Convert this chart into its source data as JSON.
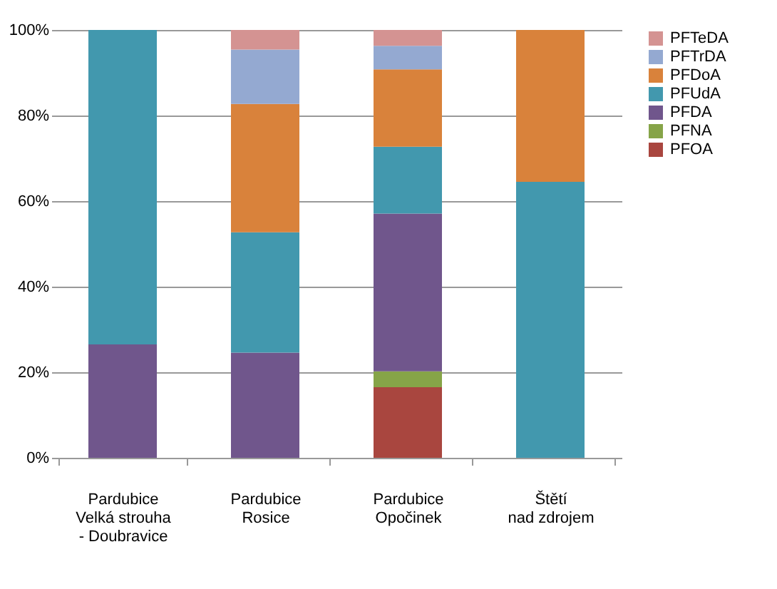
{
  "chart_data": {
    "type": "bar",
    "stacked": true,
    "categories": [
      "Pardubice\nVelká strouha\n- Doubravice",
      "Pardubice\nRosice",
      "Pardubice\nOpočinek",
      "Štětí\nnad zdrojem"
    ],
    "series": [
      {
        "name": "PFOA",
        "color": "#a9463f",
        "values": [
          0,
          0,
          16.5,
          0
        ]
      },
      {
        "name": "PFNA",
        "color": "#86a448",
        "values": [
          0,
          0,
          3.7,
          0
        ]
      },
      {
        "name": "PFDA",
        "color": "#70568c",
        "values": [
          26.5,
          24.6,
          36.9,
          0
        ]
      },
      {
        "name": "PFUdA",
        "color": "#4298ae",
        "values": [
          73.5,
          28.1,
          15.6,
          64.5
        ]
      },
      {
        "name": "PFDoA",
        "color": "#d9823b",
        "values": [
          0,
          30,
          18.1,
          35.5
        ]
      },
      {
        "name": "PFTrDA",
        "color": "#94a9d1",
        "values": [
          0,
          12.7,
          5.5,
          0
        ]
      },
      {
        "name": "PFTeDA",
        "color": "#d49392",
        "values": [
          0,
          4.6,
          3.7,
          0
        ]
      }
    ],
    "ylim": [
      0,
      100
    ],
    "yticks": [
      {
        "value": 0,
        "label": "0%"
      },
      {
        "value": 20,
        "label": "20%"
      },
      {
        "value": 40,
        "label": "40%"
      },
      {
        "value": 60,
        "label": "60%"
      },
      {
        "value": 80,
        "label": "80%"
      },
      {
        "value": 100,
        "label": "100%"
      }
    ],
    "grid": "y",
    "legend": "right"
  }
}
